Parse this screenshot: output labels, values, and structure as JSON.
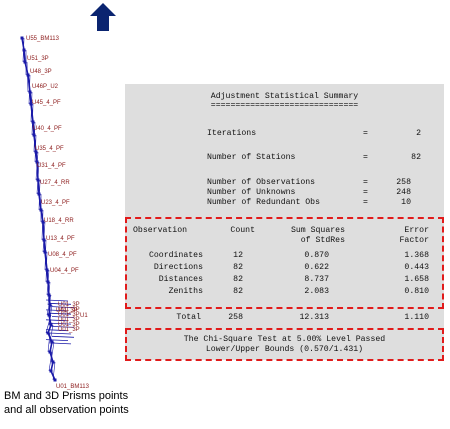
{
  "labels_network": [
    "U55_BM113",
    "U51_3P",
    "U48_3P",
    "U46P_U2",
    "U45_4_PF",
    "U40_4_PF",
    "U35_4_PF",
    "U31_4_PF",
    "U27_4_RR",
    "U23_4_PF",
    "U18_4_RR",
    "U13_4_PF",
    "U08_4_PF",
    "U04_4_PF",
    "U01_3P",
    "U1",
    "U01_BM113"
  ],
  "caption": {
    "line1": "BM and 3D Prisms points",
    "line2": "and all observation points"
  },
  "report": {
    "title": "Adjustment Statistical Summary",
    "underline": "==============================",
    "iterations": {
      "label": "Iterations",
      "eq": "=",
      "value": "2"
    },
    "stations": {
      "label": "Number of Stations",
      "eq": "=",
      "value": "82"
    },
    "observations": {
      "label": "Number of Observations",
      "eq": "=",
      "value": "258"
    },
    "unknowns": {
      "label": "Number of Unknowns",
      "eq": "=",
      "value": "248"
    },
    "redundant": {
      "label": "Number of Redundant Obs",
      "eq": "=",
      "value": "10"
    },
    "table": {
      "h1": [
        "Observation",
        "Count",
        "Sum Squares",
        "Error"
      ],
      "h2": [
        "",
        "",
        "of StdRes",
        "Factor"
      ],
      "rows": [
        {
          "name": "Coordinates",
          "count": "12",
          "ss": "0.870",
          "ef": "1.368"
        },
        {
          "name": "Directions",
          "count": "82",
          "ss": "0.622",
          "ef": "0.443"
        },
        {
          "name": "Distances",
          "count": "82",
          "ss": "8.737",
          "ef": "1.658"
        },
        {
          "name": "Zeniths",
          "count": "82",
          "ss": "2.083",
          "ef": "0.810"
        }
      ],
      "total": {
        "name": "Total",
        "count": "258",
        "ss": "12.313",
        "ef": "1.110"
      }
    },
    "chi1": "The Chi-Square Test at 5.00% Level Passed",
    "chi2": "Lower/Upper Bounds (0.570/1.431)"
  },
  "colors": {
    "line": "#1a1aa8",
    "label": "#8b1a1a",
    "arrow": "#0a2470",
    "dashed_box": "#e11b1b",
    "panel": "#dedede"
  },
  "icons": [
    "north-arrow-icon"
  ]
}
